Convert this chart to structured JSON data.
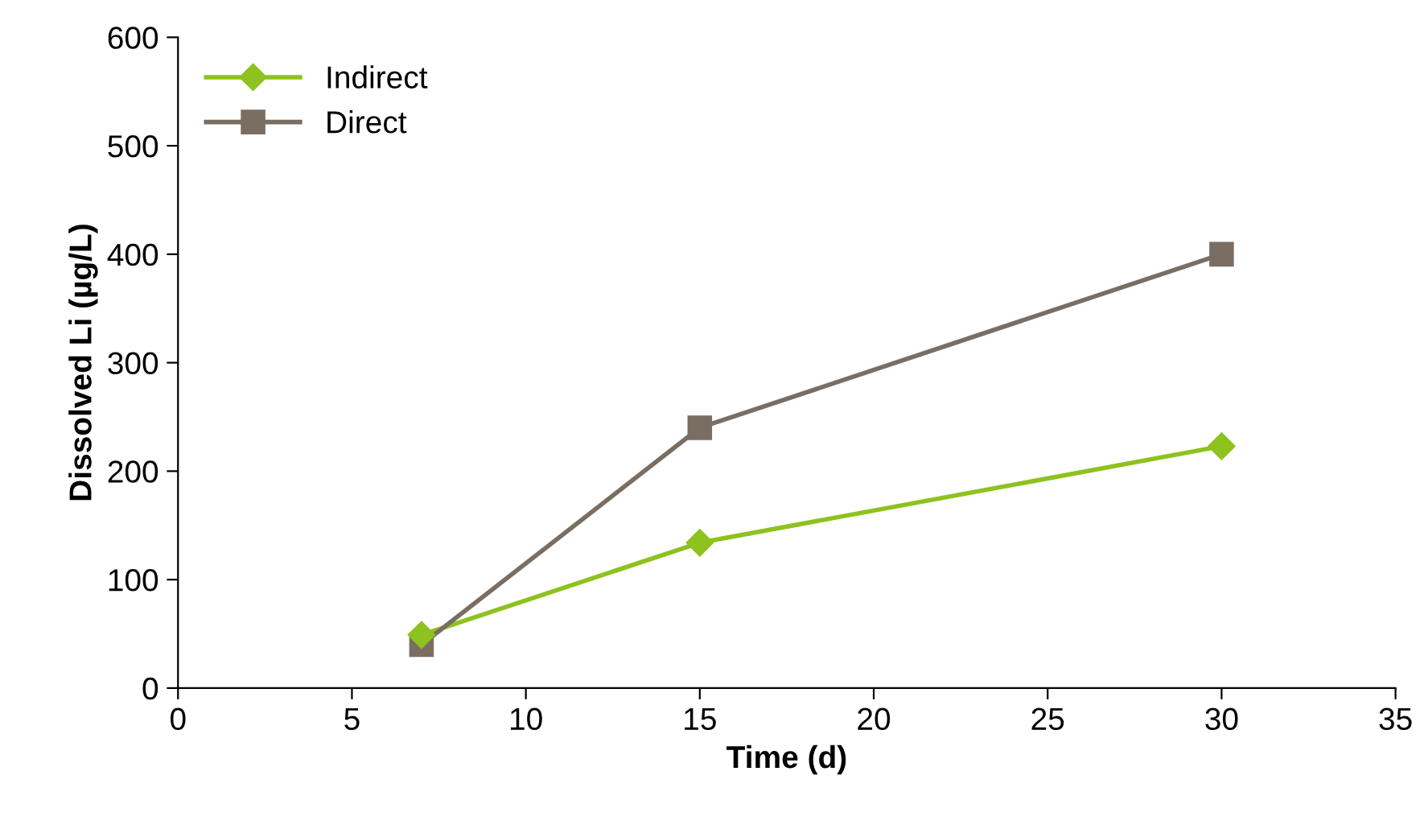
{
  "chart_data": {
    "type": "line",
    "xlabel": "Time (d)",
    "ylabel": "Dissolved Li (µg/L)",
    "xlim": [
      0,
      35
    ],
    "xticks": [
      0,
      5,
      10,
      15,
      20,
      25,
      30,
      35
    ],
    "ylim": [
      0,
      600
    ],
    "yticks": [
      0,
      100,
      200,
      300,
      400,
      500,
      600
    ],
    "grid": false,
    "legend": "top left",
    "line_style": "solid",
    "series": [
      {
        "name": "Indirect",
        "color": "#8dc21f",
        "marker": "diamond",
        "x": [
          7,
          15,
          30
        ],
        "values": [
          49,
          134,
          223
        ]
      },
      {
        "name": "Direct",
        "color": "#7a6e62",
        "marker": "square",
        "x": [
          7,
          15,
          30
        ],
        "values": [
          40,
          240,
          400
        ]
      }
    ]
  }
}
